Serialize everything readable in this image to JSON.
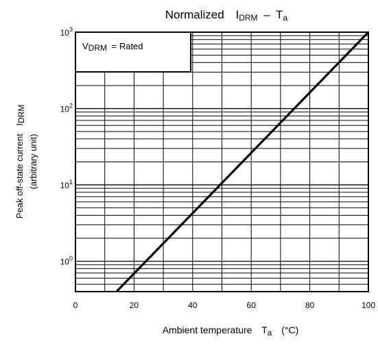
{
  "chart_data": {
    "type": "line",
    "title": {
      "prefix": "Normalized",
      "symbol_main": "I",
      "symbol_sub": "DRM",
      "dash": "–",
      "var_main": "T",
      "var_sub": "a"
    },
    "xlabel": {
      "text": "Ambient temperature",
      "symbol_main": "T",
      "symbol_sub": "a",
      "unit": "(°C)"
    },
    "ylabel": {
      "line1": "Peak off-state current",
      "symbol_main": "I",
      "symbol_sub": "DRM",
      "line2": "(arbitrary unit)"
    },
    "x_axis": {
      "range": [
        0,
        100
      ],
      "ticks": [
        0,
        20,
        40,
        60,
        80,
        100
      ],
      "tick_labels": [
        "0",
        "20",
        "40",
        "60",
        "80",
        "100"
      ],
      "major_grid": [
        0,
        10,
        20,
        30,
        40,
        50,
        60,
        70,
        80,
        90,
        100
      ]
    },
    "y_axis": {
      "scale": "log",
      "range": [
        0.4,
        1000
      ],
      "decades": [
        {
          "base": "10",
          "exp": "0",
          "value": 1
        },
        {
          "base": "10",
          "exp": "1",
          "value": 10
        },
        {
          "base": "10",
          "exp": "2",
          "value": 100
        },
        {
          "base": "10",
          "exp": "3",
          "value": 1000
        }
      ]
    },
    "legend": {
      "symbol_main": "V",
      "symbol_sub": "DRM",
      "text": "= Rated",
      "placement": "top-left"
    },
    "series": [
      {
        "x": [
          14,
          100
        ],
        "y": [
          0.4,
          1000
        ],
        "color": "#000000"
      }
    ]
  }
}
